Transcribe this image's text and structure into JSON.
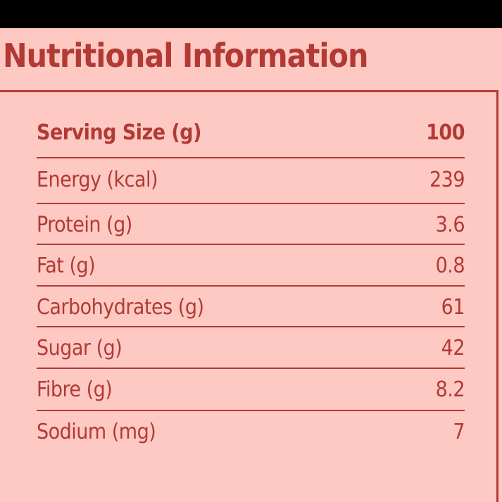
{
  "title": "Nutritional Information",
  "colors": {
    "background": "#ffc9c3",
    "text": "#b23a35",
    "frame": "#000000"
  },
  "table": {
    "header": {
      "label": "Serving Size (g)",
      "value": "100"
    },
    "rows": [
      {
        "label": "Energy (kcal)",
        "value": "239"
      },
      {
        "label": "Protein (g)",
        "value": "3.6"
      },
      {
        "label": "Fat (g)",
        "value": "0.8"
      },
      {
        "label": "Carbohydrates (g)",
        "value": "61"
      },
      {
        "label": "Sugar (g)",
        "value": "42"
      },
      {
        "label": "Fibre (g)",
        "value": "8.2"
      },
      {
        "label": "Sodium (mg)",
        "value": "7"
      }
    ]
  }
}
